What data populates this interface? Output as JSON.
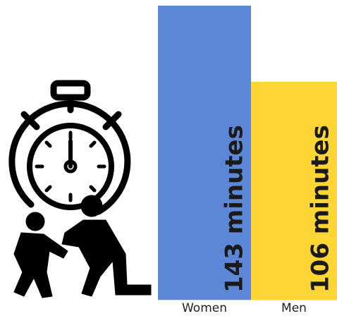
{
  "chart_data": {
    "type": "bar",
    "categories": [
      "Women",
      "Men"
    ],
    "values": [
      143,
      106
    ],
    "value_labels": [
      "143 minutes",
      "106 minutes"
    ],
    "colors": [
      "#5b87d6",
      "#fdd535"
    ]
  }
}
